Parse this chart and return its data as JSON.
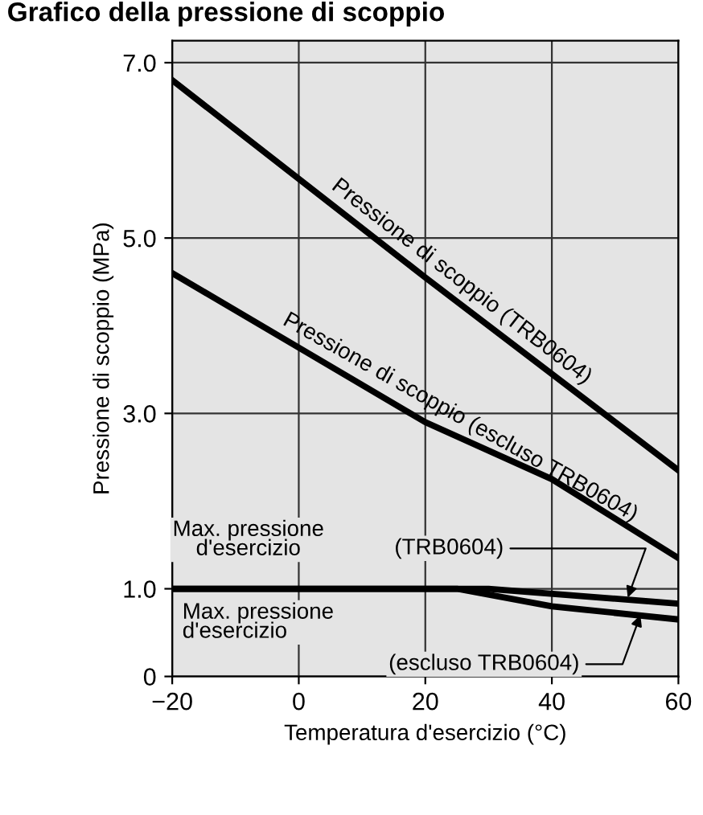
{
  "chart_data": {
    "type": "line",
    "title": "Grafico della pressione di scoppio",
    "xlabel": "Temperatura d'esercizio (°C)",
    "ylabel": "Pressione di scoppio (MPa)",
    "series": [
      {
        "name": "Pressione di scoppio (TRB0604)",
        "color": "#000000",
        "x": [
          -20,
          20,
          60
        ],
        "values": [
          6.8,
          4.55,
          2.35
        ]
      },
      {
        "name": "Pressione di scoppio (escluso TRB0604)",
        "color": "#000000",
        "x": [
          -20,
          0,
          20,
          40,
          60
        ],
        "values": [
          4.6,
          3.75,
          2.9,
          2.25,
          1.35
        ]
      },
      {
        "color": "#000000",
        "x": [
          -20,
          30,
          60
        ],
        "values": [
          1.0,
          1.0,
          0.83
        ]
      },
      {
        "color": "#000000",
        "x": [
          -20,
          25,
          40,
          60
        ],
        "values": [
          1.0,
          1.0,
          0.8,
          0.65
        ]
      }
    ],
    "annotations": [
      "Max. pressione\nd'esercizio",
      "Max. pressione\nd'esercizio",
      {
        "text": "(TRB0604)",
        "x": 52,
        "y": 0.9
      },
      {
        "text": "(escluso TRB0604)",
        "x": 54,
        "y": 0.7
      }
    ],
    "xlim": [
      -20,
      60
    ],
    "ylim": [
      0,
      7.25
    ],
    "xticks": [
      {
        "value": -20,
        "label": "−20"
      },
      0,
      20,
      40,
      60
    ],
    "yticks": [
      0,
      {
        "value": 1,
        "label": "1.0"
      },
      {
        "value": 3,
        "label": "3.0"
      },
      {
        "value": 5,
        "label": "5.0"
      },
      {
        "value": 7,
        "label": "7.0"
      }
    ],
    "grid": true,
    "legend": false,
    "line_style": "solid",
    "marker": "none"
  }
}
